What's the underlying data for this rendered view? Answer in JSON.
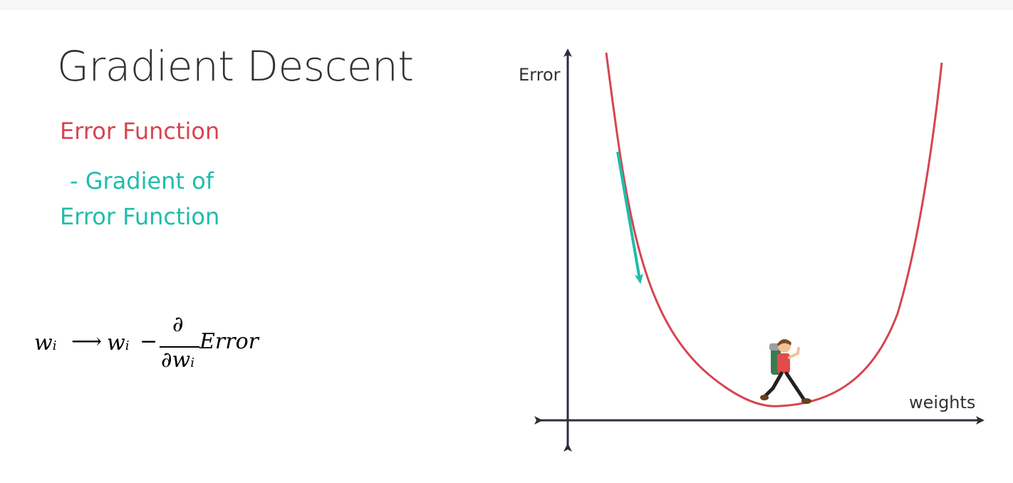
{
  "slide": {
    "title": "Gradient Descent",
    "error_function_label": "Error Function",
    "gradient_line1": "- Gradient of",
    "gradient_line2": "Error Function"
  },
  "formula": {
    "w": "w",
    "i": "i",
    "arrow": "⟶",
    "minus": "−",
    "partial": "∂",
    "error": "Error"
  },
  "diagram": {
    "y_axis_label": "Error",
    "x_axis_label": "weights",
    "curve_color": "#d64550",
    "gradient_arrow_color": "#1ebdab",
    "axis_color": "#2b2f3a",
    "title_color": "#333333",
    "hiker_icon": "hiker-icon"
  }
}
